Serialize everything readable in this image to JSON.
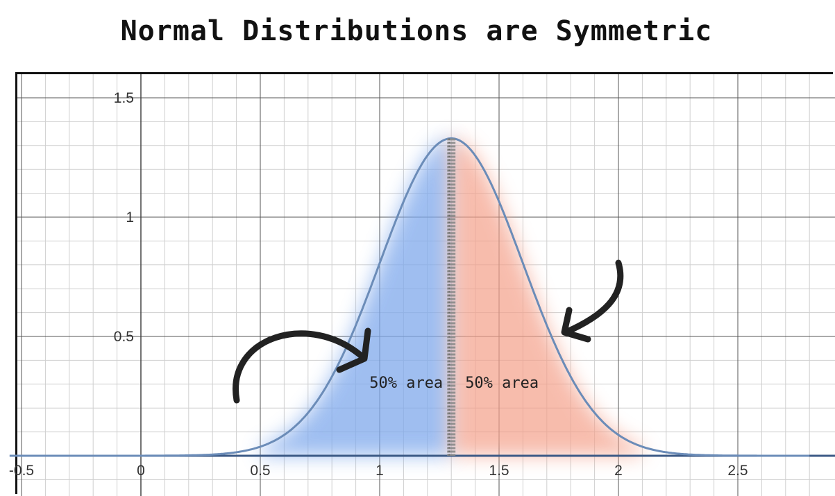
{
  "chart_data": {
    "type": "area",
    "title": "Normal Distributions are Symmetric",
    "xlabel": "",
    "ylabel": "",
    "xlim": [
      -0.55,
      2.8
    ],
    "ylim": [
      -0.17,
      1.57
    ],
    "grid": true,
    "xticks": [
      -0.5,
      0,
      0.5,
      1,
      1.5,
      2,
      2.5
    ],
    "xtick_labels": [
      "-0.5",
      "0",
      "0.5",
      "1",
      "1.5",
      "2",
      "2.5"
    ],
    "yticks": [
      0.5,
      1,
      1.5
    ],
    "ytick_labels": [
      "0.5",
      "1",
      "1.5"
    ],
    "curve": {
      "mean": 1.3,
      "sd": 0.3,
      "peak": 1.33
    },
    "center_line_x": 1.3,
    "regions": [
      {
        "side": "left",
        "label": "50% area",
        "color": "#7fa9ec"
      },
      {
        "side": "right",
        "label": "50% area",
        "color": "#f4a08a"
      }
    ],
    "curve_color": "#6b8cb8",
    "axis_color": "#3c5a86"
  }
}
